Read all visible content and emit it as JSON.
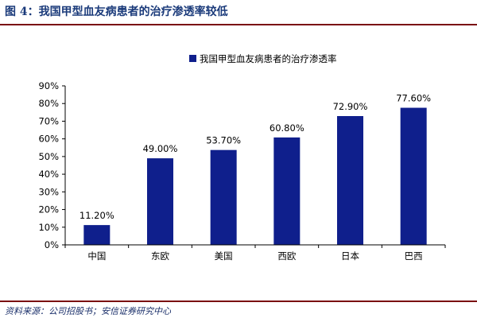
{
  "header": {
    "title": "图 4：我国甲型血友病患者的治疗渗透率较低"
  },
  "footer": {
    "source": "资料来源：公司招股书；安信证券研究中心"
  },
  "colors": {
    "bar": "#0f1f8c",
    "title": "#1a3a7a",
    "rule": "#7a0b10"
  },
  "chart_data": {
    "type": "bar",
    "title": "",
    "xlabel": "",
    "ylabel": "",
    "categories": [
      "中国",
      "东欧",
      "美国",
      "西欧",
      "日本",
      "巴西"
    ],
    "series": [
      {
        "name": "我国甲型血友病患者的治疗渗透率",
        "values": [
          11.2,
          49.0,
          53.7,
          60.8,
          72.9,
          77.6
        ],
        "data_labels": [
          "11.20%",
          "49.00%",
          "53.70%",
          "60.80%",
          "72.90%",
          "77.60%"
        ]
      }
    ],
    "ylim": [
      0,
      90
    ],
    "y_ticks": [
      0,
      10,
      20,
      30,
      40,
      50,
      60,
      70,
      80,
      90
    ],
    "y_tick_labels": [
      "0%",
      "10%",
      "20%",
      "30%",
      "40%",
      "50%",
      "60%",
      "70%",
      "80%",
      "90%"
    ],
    "grid": false,
    "legend_position": "top-center"
  }
}
